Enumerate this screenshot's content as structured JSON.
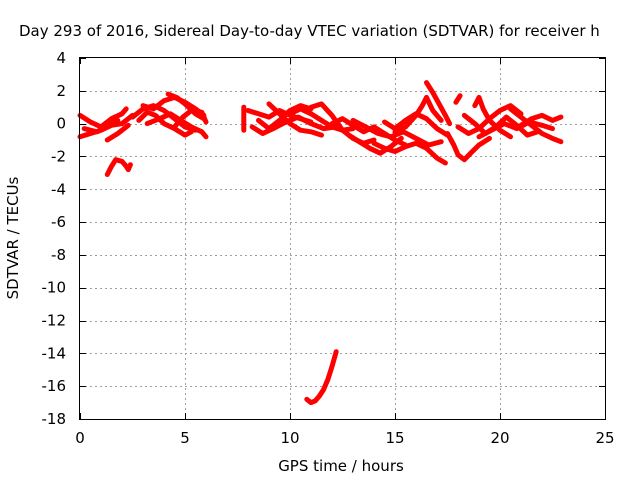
{
  "chart_data": {
    "type": "scatter",
    "title": "Day 293 of 2016, Sidereal Day-to-day VTEC variation (SDTVAR) for receiver h",
    "xlabel": "GPS time / hours",
    "ylabel": "SDTVAR / TECUs",
    "xlim": [
      0,
      25
    ],
    "ylim": [
      -18,
      4
    ],
    "xticks": [
      0,
      5,
      10,
      15,
      20,
      25
    ],
    "yticks": [
      4,
      2,
      0,
      -2,
      -4,
      -6,
      -8,
      -10,
      -12,
      -14,
      -16,
      -18
    ],
    "grid": true,
    "marker_color": "#ff0000",
    "series": [
      {
        "values": [
          [
            0.0,
            0.5
          ],
          [
            0.5,
            0.1
          ],
          [
            1.0,
            -0.2
          ],
          [
            1.5,
            0.3
          ],
          [
            2.0,
            0.6
          ],
          [
            2.2,
            0.9
          ]
        ]
      },
      {
        "values": [
          [
            0.0,
            -0.8
          ],
          [
            0.5,
            -0.6
          ],
          [
            1.0,
            -0.4
          ],
          [
            1.5,
            -0.1
          ],
          [
            2.0,
            0.0
          ],
          [
            2.5,
            0.5
          ]
        ]
      },
      {
        "values": [
          [
            0.2,
            -0.3
          ],
          [
            0.8,
            -0.5
          ],
          [
            1.3,
            -0.2
          ],
          [
            1.8,
            0.2
          ]
        ]
      },
      {
        "values": [
          [
            1.3,
            -1.0
          ],
          [
            1.8,
            -0.6
          ],
          [
            2.3,
            -0.1
          ]
        ]
      },
      {
        "values": [
          [
            1.3,
            -3.1
          ],
          [
            1.5,
            -2.6
          ],
          [
            1.7,
            -2.2
          ],
          [
            2.0,
            -2.3
          ],
          [
            2.2,
            -2.6
          ],
          [
            2.3,
            -2.8
          ],
          [
            2.4,
            -2.5
          ]
        ]
      },
      {
        "values": [
          [
            2.5,
            0.4
          ],
          [
            3.0,
            0.9
          ],
          [
            3.5,
            1.1
          ],
          [
            4.0,
            0.8
          ],
          [
            4.5,
            0.3
          ],
          [
            5.0,
            -0.2
          ],
          [
            5.5,
            -0.4
          ]
        ]
      },
      {
        "values": [
          [
            2.8,
            0.2
          ],
          [
            3.2,
            0.7
          ],
          [
            3.6,
            0.5
          ],
          [
            4.0,
            0.0
          ],
          [
            4.5,
            -0.3
          ],
          [
            5.0,
            -0.7
          ],
          [
            5.3,
            -0.5
          ]
        ]
      },
      {
        "values": [
          [
            3.0,
            1.1
          ],
          [
            3.5,
            0.9
          ],
          [
            4.0,
            1.4
          ],
          [
            4.5,
            1.6
          ],
          [
            5.0,
            1.3
          ],
          [
            5.5,
            0.9
          ],
          [
            5.9,
            0.5
          ]
        ]
      },
      {
        "values": [
          [
            3.2,
            0.0
          ],
          [
            3.8,
            0.3
          ],
          [
            4.3,
            0.6
          ],
          [
            4.8,
            0.2
          ],
          [
            5.3,
            -0.2
          ],
          [
            5.8,
            -0.5
          ],
          [
            6.0,
            -0.8
          ]
        ]
      },
      {
        "values": [
          [
            4.2,
            1.8
          ],
          [
            4.6,
            1.6
          ],
          [
            5.0,
            1.2
          ],
          [
            5.5,
            0.6
          ],
          [
            5.9,
            0.3
          ]
        ]
      },
      {
        "values": [
          [
            4.5,
            -0.2
          ],
          [
            4.9,
            0.4
          ],
          [
            5.3,
            0.8
          ],
          [
            5.8,
            0.7
          ],
          [
            6.0,
            0.1
          ]
        ]
      },
      {
        "values": [
          [
            7.8,
            1.0
          ],
          [
            7.8,
            0.3
          ],
          [
            7.8,
            -0.4
          ]
        ]
      },
      {
        "values": [
          [
            8.0,
            0.8
          ],
          [
            8.5,
            0.6
          ],
          [
            9.0,
            0.4
          ],
          [
            9.5,
            0.8
          ],
          [
            10.0,
            0.5
          ],
          [
            10.5,
            0.3
          ],
          [
            11.0,
            0.1
          ]
        ]
      },
      {
        "values": [
          [
            8.2,
            -0.2
          ],
          [
            8.7,
            -0.6
          ],
          [
            9.2,
            -0.3
          ],
          [
            9.8,
            0.1
          ],
          [
            10.4,
            0.4
          ],
          [
            11.0,
            0.0
          ],
          [
            11.6,
            -0.3
          ],
          [
            12.2,
            -0.2
          ]
        ]
      },
      {
        "values": [
          [
            8.5,
            0.2
          ],
          [
            9.0,
            -0.3
          ],
          [
            9.5,
            0.2
          ],
          [
            10.0,
            0.8
          ],
          [
            10.5,
            1.1
          ],
          [
            11.0,
            0.9
          ]
        ]
      },
      {
        "values": [
          [
            9.0,
            1.2
          ],
          [
            9.5,
            0.6
          ],
          [
            10.0,
            0.0
          ],
          [
            10.5,
            -0.4
          ],
          [
            11.0,
            -0.5
          ],
          [
            11.5,
            -0.7
          ]
        ]
      },
      {
        "values": [
          [
            10.0,
            0.6
          ],
          [
            10.5,
            0.9
          ],
          [
            11.0,
            0.6
          ],
          [
            11.5,
            0.2
          ],
          [
            12.0,
            -0.2
          ],
          [
            12.5,
            -0.4
          ],
          [
            13.0,
            -0.3
          ]
        ]
      },
      {
        "values": [
          [
            11.0,
            1.0
          ],
          [
            11.5,
            1.2
          ],
          [
            12.0,
            0.5
          ],
          [
            12.5,
            -0.4
          ],
          [
            13.0,
            -0.9
          ],
          [
            13.5,
            -1.2
          ],
          [
            14.0,
            -1.0
          ]
        ]
      },
      {
        "values": [
          [
            12.0,
            0.0
          ],
          [
            12.5,
            0.3
          ],
          [
            13.0,
            -0.1
          ],
          [
            13.5,
            -0.5
          ],
          [
            14.0,
            -0.2
          ],
          [
            14.5,
            -0.6
          ],
          [
            15.0,
            -1.0
          ],
          [
            15.5,
            -1.3
          ]
        ]
      },
      {
        "values": [
          [
            12.8,
            -0.7
          ],
          [
            13.3,
            -1.1
          ],
          [
            13.8,
            -1.5
          ],
          [
            14.3,
            -1.8
          ],
          [
            14.8,
            -1.4
          ],
          [
            15.3,
            -0.9
          ]
        ]
      },
      {
        "values": [
          [
            13.0,
            0.2
          ],
          [
            13.6,
            -0.2
          ],
          [
            14.2,
            -0.6
          ],
          [
            14.8,
            -0.8
          ],
          [
            15.4,
            -0.5
          ],
          [
            16.0,
            -0.9
          ],
          [
            16.6,
            -1.3
          ],
          [
            17.2,
            -1.1
          ]
        ]
      },
      {
        "values": [
          [
            14.0,
            -1.2
          ],
          [
            14.5,
            -1.5
          ],
          [
            15.0,
            -1.7
          ],
          [
            15.5,
            -1.4
          ],
          [
            16.0,
            -1.2
          ],
          [
            16.5,
            -1.5
          ],
          [
            17.0,
            -2.1
          ],
          [
            17.4,
            -2.4
          ]
        ]
      },
      {
        "values": [
          [
            14.5,
            0.1
          ],
          [
            15.0,
            -0.3
          ],
          [
            15.5,
            0.2
          ],
          [
            16.0,
            0.6
          ],
          [
            16.5,
            0.3
          ],
          [
            17.0,
            -0.3
          ],
          [
            17.5,
            -0.7
          ]
        ]
      },
      {
        "values": [
          [
            15.0,
            -0.5
          ],
          [
            15.5,
            -0.2
          ],
          [
            16.0,
            0.5
          ],
          [
            16.3,
            1.1
          ],
          [
            16.5,
            1.6
          ],
          [
            16.8,
            0.8
          ],
          [
            17.2,
            0.2
          ]
        ]
      },
      {
        "values": [
          [
            16.5,
            2.5
          ],
          [
            16.8,
            1.9
          ],
          [
            17.1,
            1.2
          ],
          [
            17.4,
            0.5
          ],
          [
            17.6,
            0.0
          ]
        ]
      },
      {
        "values": [
          [
            17.5,
            -0.6
          ],
          [
            17.8,
            -1.3
          ],
          [
            18.0,
            -1.9
          ],
          [
            18.3,
            -2.2
          ],
          [
            18.6,
            -1.8
          ],
          [
            19.0,
            -1.3
          ],
          [
            19.5,
            -0.9
          ]
        ]
      },
      {
        "values": [
          [
            17.9,
            1.3
          ],
          [
            18.1,
            1.7
          ]
        ]
      },
      {
        "values": [
          [
            18.0,
            -0.2
          ],
          [
            18.5,
            -0.6
          ],
          [
            19.0,
            -0.3
          ],
          [
            19.5,
            0.3
          ],
          [
            20.0,
            0.8
          ],
          [
            20.5,
            1.1
          ],
          [
            21.0,
            0.6
          ]
        ]
      },
      {
        "values": [
          [
            18.3,
            0.5
          ],
          [
            18.8,
            0.0
          ],
          [
            19.3,
            -0.6
          ],
          [
            19.8,
            -0.2
          ],
          [
            20.3,
            0.4
          ],
          [
            20.8,
            -0.1
          ],
          [
            21.3,
            -0.7
          ],
          [
            21.8,
            -0.5
          ]
        ]
      },
      {
        "values": [
          [
            18.8,
            1.1
          ],
          [
            19.0,
            1.6
          ],
          [
            19.2,
            0.9
          ],
          [
            19.5,
            0.2
          ],
          [
            20.0,
            -0.4
          ],
          [
            20.5,
            -0.8
          ]
        ]
      },
      {
        "values": [
          [
            19.0,
            -0.8
          ],
          [
            19.6,
            -0.4
          ],
          [
            20.2,
            0.0
          ],
          [
            20.8,
            -0.3
          ],
          [
            21.4,
            0.1
          ],
          [
            22.0,
            -0.1
          ],
          [
            22.5,
            -0.3
          ]
        ]
      },
      {
        "values": [
          [
            20.5,
            0.9
          ],
          [
            21.0,
            0.4
          ],
          [
            21.5,
            -0.1
          ],
          [
            22.0,
            -0.6
          ],
          [
            22.5,
            -0.9
          ],
          [
            22.9,
            -1.1
          ]
        ]
      },
      {
        "values": [
          [
            21.0,
            -0.1
          ],
          [
            21.5,
            0.3
          ],
          [
            22.0,
            0.5
          ],
          [
            22.5,
            0.2
          ],
          [
            22.9,
            0.4
          ]
        ]
      },
      {
        "values": [
          [
            10.8,
            -16.8
          ],
          [
            11.0,
            -17.0
          ],
          [
            11.2,
            -16.9
          ],
          [
            11.4,
            -16.6
          ],
          [
            11.6,
            -16.2
          ],
          [
            11.8,
            -15.6
          ],
          [
            12.0,
            -14.8
          ],
          [
            12.2,
            -13.9
          ]
        ]
      }
    ]
  }
}
